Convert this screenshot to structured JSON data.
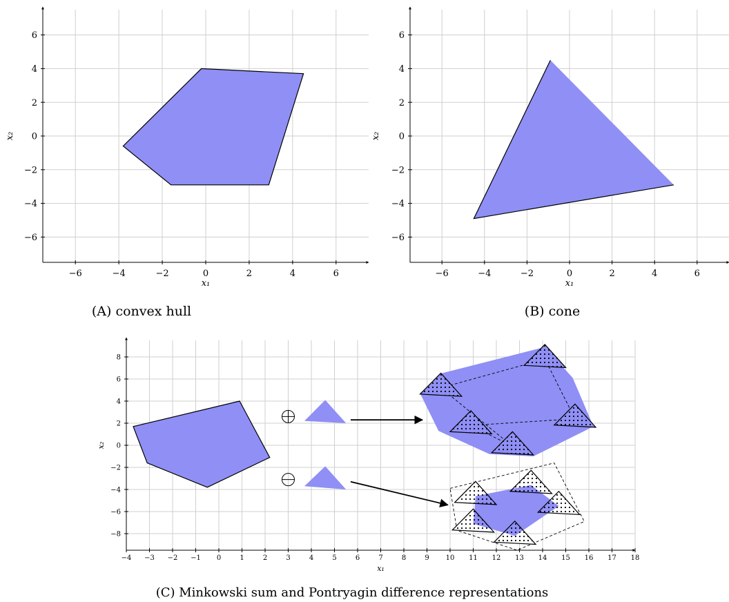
{
  "chart_data": [
    {
      "type": "polygon",
      "id": "a",
      "xlabel": "x₁",
      "ylabel": "x₂",
      "xlim": [
        -7.5,
        7.5
      ],
      "ylim": [
        -7.5,
        7.5
      ],
      "xticks": [
        -6,
        -4,
        -2,
        0,
        2,
        4,
        6
      ],
      "yticks": [
        -6,
        -4,
        -2,
        0,
        2,
        4,
        6
      ],
      "tick_labels_x": [
        "−6",
        "−4",
        "−2",
        "0",
        "2",
        "4",
        "6"
      ],
      "tick_labels_y": [
        "−6",
        "−4",
        "−2",
        "0",
        "2",
        "4",
        "6"
      ],
      "grid": true,
      "caption": "(A) convex hull",
      "polygon": [
        [
          -0.2,
          4.0
        ],
        [
          4.5,
          3.7
        ],
        [
          2.9,
          -2.9
        ],
        [
          -1.6,
          -2.9
        ],
        [
          -3.8,
          -0.6
        ]
      ]
    },
    {
      "type": "polygon",
      "id": "b",
      "xlabel": "x₁",
      "ylabel": "x₂",
      "xlim": [
        -7.5,
        7.5
      ],
      "ylim": [
        -7.5,
        7.5
      ],
      "xticks": [
        -6,
        -4,
        -2,
        0,
        2,
        4,
        6
      ],
      "yticks": [
        -6,
        -4,
        -2,
        0,
        2,
        4,
        6
      ],
      "tick_labels_x": [
        "−6",
        "−4",
        "−2",
        "0",
        "2",
        "4",
        "6"
      ],
      "tick_labels_y": [
        "−6",
        "−4",
        "−2",
        "0",
        "2",
        "4",
        "6"
      ],
      "grid": true,
      "caption": "(B) cone",
      "polygon": [
        [
          -0.9,
          4.5
        ],
        [
          4.9,
          -2.9
        ],
        [
          -4.5,
          -4.9
        ]
      ]
    },
    {
      "type": "polygon",
      "id": "c",
      "xlabel": "x₁",
      "ylabel": "x₂",
      "xlim": [
        -4,
        18
      ],
      "ylim": [
        -9.5,
        9.5
      ],
      "xticks": [
        -4,
        -3,
        -2,
        -1,
        0,
        1,
        2,
        3,
        4,
        5,
        6,
        7,
        8,
        9,
        10,
        11,
        12,
        13,
        14,
        15,
        16,
        17,
        18
      ],
      "yticks": [
        -8,
        -6,
        -4,
        -2,
        0,
        2,
        4,
        6,
        8
      ],
      "tick_labels_x": [
        "−4",
        "−3",
        "−2",
        "−1",
        "0",
        "1",
        "2",
        "3",
        "4",
        "5",
        "6",
        "7",
        "8",
        "9",
        "10",
        "11",
        "12",
        "13",
        "14",
        "15",
        "16",
        "17",
        "18"
      ],
      "tick_labels_y": [
        "−8",
        "−6",
        "−4",
        "−2",
        "0",
        "2",
        "4",
        "6",
        "8"
      ],
      "grid": true,
      "caption": "(C) Minkowski sum and Pontryagin difference representations",
      "operators": {
        "sum": "⊕",
        "difference": "⊖"
      },
      "set": [
        [
          0.9,
          4.0
        ],
        [
          2.2,
          -1.1
        ],
        [
          -0.5,
          -3.8
        ],
        [
          -3.1,
          -1.6
        ],
        [
          -3.7,
          1.7
        ]
      ],
      "triangle_sum": [
        [
          3.7,
          2.2
        ],
        [
          4.6,
          4.1
        ],
        [
          5.5,
          2.0
        ]
      ],
      "triangle_diff": [
        [
          3.7,
          -3.7
        ],
        [
          4.6,
          -1.9
        ],
        [
          5.5,
          -4.0
        ]
      ],
      "minkowski_sum": [
        [
          9.6,
          6.5
        ],
        [
          14.1,
          8.9
        ],
        [
          15.3,
          6.1
        ],
        [
          16.2,
          1.7
        ],
        [
          13.6,
          -1.0
        ],
        [
          11.7,
          -0.8
        ],
        [
          9.5,
          1.3
        ],
        [
          8.7,
          4.7
        ]
      ],
      "minkowski_copies": [
        [
          9.6,
          5.2
        ],
        [
          14.1,
          7.8
        ],
        [
          15.4,
          2.4
        ],
        [
          10.9,
          1.8
        ],
        [
          12.7,
          -0.1
        ]
      ],
      "pontryagin_diff": [
        [
          11.1,
          -4.6
        ],
        [
          13.5,
          -3.6
        ],
        [
          14.7,
          -5.5
        ],
        [
          12.8,
          -8.2
        ],
        [
          11.0,
          -7.1
        ]
      ],
      "pontryagin_copies": [
        [
          11.1,
          -4.6
        ],
        [
          13.5,
          -3.6
        ],
        [
          14.7,
          -5.5
        ],
        [
          12.8,
          -8.2
        ],
        [
          11.0,
          -7.1
        ]
      ],
      "pontryagin_bound": [
        [
          10.0,
          -3.9
        ],
        [
          14.5,
          -1.6
        ],
        [
          15.8,
          -6.9
        ],
        [
          12.9,
          -9.5
        ],
        [
          10.3,
          -7.7
        ]
      ],
      "arrows": [
        [
          [
            5.7,
            2.3
          ],
          [
            8.8,
            2.3
          ]
        ],
        [
          [
            5.7,
            -3.3
          ],
          [
            9.9,
            -5.4
          ]
        ]
      ]
    }
  ]
}
